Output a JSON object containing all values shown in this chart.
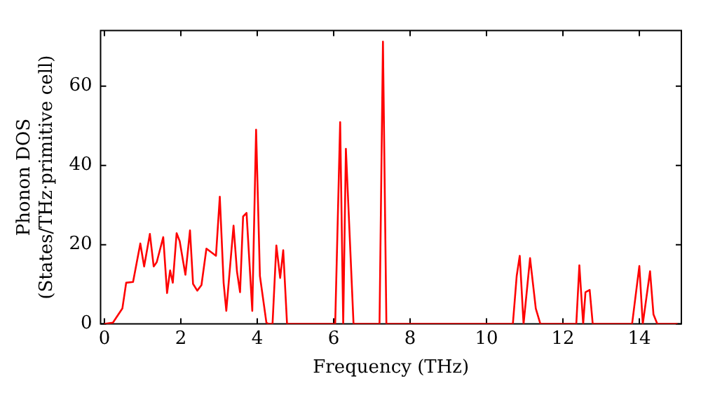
{
  "chart_data": {
    "type": "line",
    "xlabel": "Frequency (THz)",
    "ylabel": "Phonon DOS\n(States/THz·primitive cell)",
    "xlim": [
      -0.1,
      15.1
    ],
    "ylim": [
      0,
      74
    ],
    "xticks": [
      0,
      2,
      4,
      6,
      8,
      10,
      12,
      14
    ],
    "yticks": [
      0,
      20,
      40,
      60
    ],
    "grid": false,
    "legend": false,
    "marker": "none",
    "line_style": "solid",
    "series": [
      {
        "color": "#ff0000",
        "x": [
          0,
          0.22,
          0.47,
          0.57,
          0.75,
          0.94,
          1.04,
          1.19,
          1.29,
          1.37,
          1.54,
          1.64,
          1.72,
          1.79,
          1.89,
          1.97,
          2.12,
          2.24,
          2.32,
          2.43,
          2.54,
          2.67,
          2.92,
          3.02,
          3.12,
          3.19,
          3.38,
          3.47,
          3.55,
          3.63,
          3.72,
          3.87,
          3.97,
          4.07,
          4.24,
          4.3,
          4.4,
          4.5,
          4.6,
          4.68,
          4.78,
          6.04,
          6.17,
          6.25,
          6.32,
          6.52,
          7.2,
          7.29,
          7.38,
          10.69,
          10.79,
          10.87,
          10.97,
          11.14,
          11.29,
          11.41,
          12.35,
          12.43,
          12.53,
          12.59,
          12.7,
          12.78,
          13.81,
          14.0,
          14.09,
          14.28,
          14.37,
          14.47,
          15.0
        ],
        "values": [
          0,
          0.3,
          3.9,
          10.4,
          10.6,
          20.3,
          14.5,
          22.7,
          14.5,
          15.6,
          21.9,
          7.8,
          13.5,
          10.4,
          22.9,
          20.9,
          12.4,
          23.6,
          10.1,
          8.4,
          9.8,
          19,
          17.2,
          32.1,
          10.4,
          3.3,
          24.8,
          13.2,
          8,
          27.1,
          28,
          3.3,
          49,
          12.1,
          0.3,
          0,
          0,
          19.8,
          11.6,
          18.6,
          0,
          0,
          50.9,
          0,
          44.2,
          0,
          0,
          71.2,
          0,
          0,
          12.1,
          17.2,
          0,
          16.6,
          3.9,
          0,
          0,
          14.8,
          0,
          8,
          8.6,
          0,
          0,
          14.6,
          0,
          13.3,
          2.4,
          0,
          0
        ]
      }
    ]
  }
}
